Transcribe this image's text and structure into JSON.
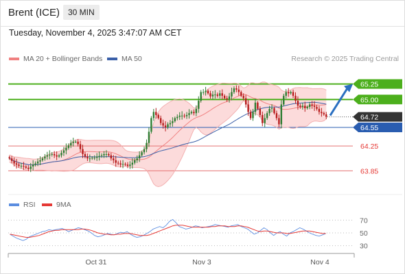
{
  "header": {
    "title": "Brent (ICE)",
    "timeframe": "30 MIN"
  },
  "datetime": "Tuesday, November 4, 2025 3:47:07 AM CET",
  "legends": {
    "bollinger": "MA 20 + Bollinger Bands",
    "ma50": "MA 50",
    "rsi": "RSI",
    "rsi_ma": "9MA",
    "credit": "Research © 2025 Trading Central"
  },
  "colors": {
    "bull": "#2e7d32",
    "bear": "#b71c1c",
    "ma20": "#f08080",
    "band": "#fbd5d5",
    "ma50": "#3a5fa8",
    "resistance": "#4caf1c",
    "support_blue": "#2a5db0",
    "support_red": "#e57373",
    "rsi": "#5b8de0",
    "rsi_ma": "#e53935",
    "current": "#333333"
  },
  "chart_data": {
    "type": "candlestick",
    "ylim": [
      63.6,
      65.5
    ],
    "x_ticks": [
      "Oct 31",
      "Nov 3",
      "Nov 4"
    ],
    "current_price": 64.72,
    "levels": [
      {
        "value": 65.25,
        "label": "65.25",
        "kind": "resistance"
      },
      {
        "value": 65.0,
        "label": "65.00",
        "kind": "resistance"
      },
      {
        "value": 64.55,
        "label": "64.55",
        "kind": "support_blue"
      },
      {
        "value": 64.25,
        "label": "64.25",
        "kind": "support_red"
      },
      {
        "value": 63.85,
        "label": "63.85",
        "kind": "support_red"
      }
    ],
    "close": [
      64.05,
      64.01,
      63.97,
      63.95,
      63.93,
      63.93,
      63.92,
      63.9,
      63.88,
      63.92,
      63.95,
      63.97,
      64.0,
      64.02,
      64.05,
      64.08,
      64.1,
      64.11,
      64.12,
      64.1,
      64.08,
      64.1,
      64.14,
      64.18,
      64.22,
      64.26,
      64.3,
      64.32,
      64.32,
      64.28,
      64.2,
      64.12,
      64.08,
      64.05,
      64.05,
      64.06,
      64.06,
      64.08,
      64.09,
      64.1,
      64.12,
      64.12,
      64.1,
      64.05,
      64.02,
      63.98,
      63.97,
      63.95,
      63.96,
      63.95,
      63.93,
      63.95,
      63.98,
      64.02,
      64.05,
      64.1,
      64.15,
      64.2,
      64.3,
      64.48,
      64.7,
      64.8,
      64.75,
      64.7,
      64.62,
      64.58,
      64.55,
      64.6,
      64.62,
      64.65,
      64.7,
      64.72,
      64.74,
      64.74,
      64.73,
      64.75,
      64.78,
      64.8,
      64.78,
      64.85,
      64.98,
      65.12,
      65.12,
      65.14,
      65.1,
      65.05,
      65.08,
      65.08,
      65.06,
      65.1,
      65.06,
      65.02,
      65.0,
      65.05,
      65.12,
      65.18,
      65.16,
      65.12,
      65.06,
      65.02,
      64.92,
      64.8,
      64.7,
      64.8,
      64.95,
      64.85,
      64.75,
      64.62,
      64.7,
      64.78,
      64.85,
      64.86,
      64.78,
      64.7,
      64.6,
      64.92,
      65.06,
      65.12,
      65.1,
      65.12,
      65.06,
      64.98,
      64.9,
      64.88,
      64.9,
      64.86,
      64.88,
      64.92,
      64.9,
      64.88,
      64.85,
      64.8,
      64.78,
      64.76,
      64.72
    ],
    "rsi": {
      "ylim": [
        20,
        80
      ],
      "ticks": [
        70,
        50,
        30
      ],
      "values": [
        48,
        45,
        42,
        40,
        38,
        40,
        44,
        46,
        48,
        50,
        52,
        53,
        55,
        54,
        55,
        56,
        57,
        55,
        52,
        54,
        56,
        58,
        57,
        55,
        53,
        50,
        46,
        44,
        45,
        47,
        49,
        48,
        47,
        49,
        51,
        50,
        52,
        48,
        45,
        43,
        44,
        46,
        49,
        52,
        56,
        58,
        60,
        58,
        62,
        68,
        71,
        66,
        60,
        58,
        56,
        57,
        59,
        61,
        60,
        58,
        59,
        60,
        61,
        63,
        62,
        61,
        60,
        59,
        61,
        62,
        63,
        60,
        58,
        56,
        52,
        48,
        50,
        54,
        58,
        55,
        50,
        46,
        50,
        52,
        48,
        45,
        50,
        52,
        55,
        58,
        56,
        53,
        50,
        48,
        46,
        45,
        47,
        49
      ],
      "ma": [
        48,
        47,
        46,
        45,
        44,
        43,
        43,
        44,
        45,
        46,
        48,
        50,
        52,
        53,
        54,
        54,
        55,
        55,
        55,
        55,
        55,
        55,
        56,
        56,
        55,
        54,
        52,
        50,
        49,
        48,
        48,
        47,
        47,
        48,
        48,
        49,
        49,
        49,
        48,
        47,
        46,
        46,
        46,
        47,
        49,
        51,
        53,
        55,
        57,
        59,
        61,
        62,
        62,
        62,
        61,
        60,
        59,
        59,
        59,
        59,
        59,
        59,
        60,
        60,
        61,
        61,
        61,
        60,
        60,
        60,
        61,
        61,
        60,
        59,
        57,
        55,
        53,
        52,
        53,
        53,
        52,
        51,
        50,
        50,
        50,
        49,
        49,
        50,
        51,
        52,
        53,
        53,
        53,
        52,
        51,
        50,
        49,
        49
      ]
    }
  }
}
